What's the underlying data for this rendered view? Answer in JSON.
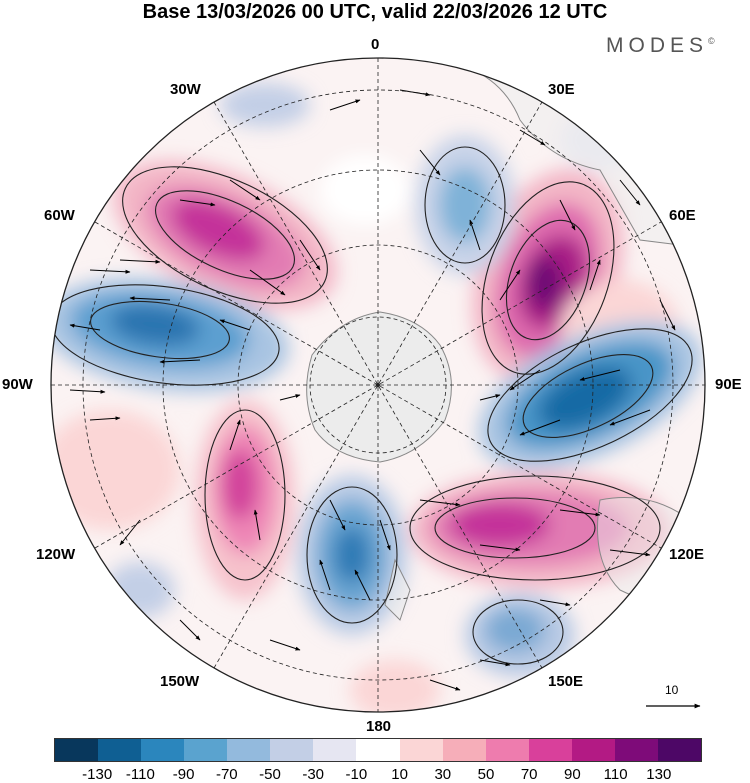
{
  "header": {
    "title": "Base 13/03/2026 00 UTC, valid 22/03/2026 12 UTC",
    "brand": "MODES"
  },
  "map": {
    "projection": "south polar stereographic",
    "longitude_labels": {
      "top": "0",
      "top_right": "30E",
      "right_upper": "60E",
      "right": "90E",
      "right_lower": "120E",
      "bottom_right": "150E",
      "bottom": "180",
      "bottom_left": "150W",
      "left_lower": "120W",
      "left": "90W",
      "left_upper": "60W",
      "top_left": "30W"
    },
    "reference_vector_label": "10"
  },
  "colorbar": {
    "tick_labels": [
      "-130",
      "-110",
      "-90",
      "-70",
      "-50",
      "-30",
      "-10",
      "10",
      "30",
      "50",
      "70",
      "90",
      "110",
      "130"
    ],
    "colors": [
      "#08375c",
      "#0f5f93",
      "#2b86bd",
      "#5aa3cf",
      "#93badd",
      "#c3cfe6",
      "#e6e6f2",
      "#ffffff",
      "#fbd6d6",
      "#f6aeb9",
      "#ee7cae",
      "#d9409b",
      "#b31a84",
      "#7e0b79",
      "#4d0766"
    ]
  },
  "colors": {
    "land": "#ececec",
    "coast": "#888888",
    "grid": "#222222"
  }
}
